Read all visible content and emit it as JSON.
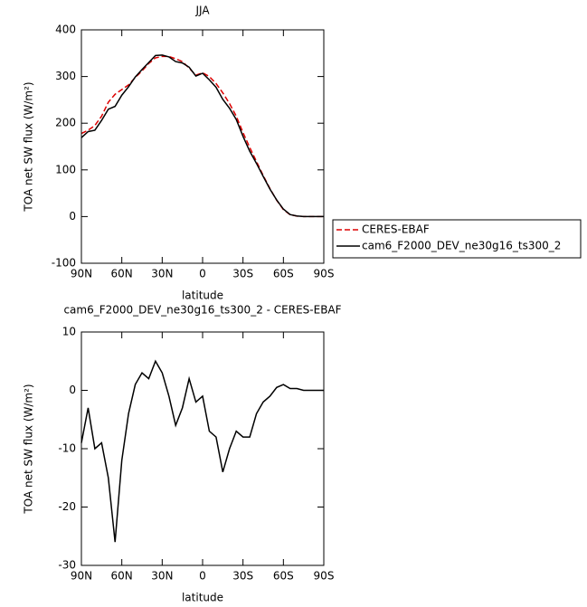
{
  "chart_data": [
    {
      "type": "line",
      "title": "JJA",
      "xlabel": "latitude",
      "ylabel": "TOA net SW flux (W/m²)",
      "x": [
        90,
        85,
        80,
        75,
        70,
        65,
        60,
        55,
        50,
        45,
        40,
        35,
        30,
        25,
        20,
        15,
        10,
        5,
        0,
        -5,
        -10,
        -15,
        -20,
        -25,
        -30,
        -35,
        -40,
        -45,
        -50,
        -55,
        -60,
        -65,
        -70,
        -75,
        -80,
        -85,
        -90
      ],
      "series": [
        {
          "name": "CERES-EBAF",
          "color": "#dd0000",
          "linestyle": "dashed",
          "values": [
            178,
            185,
            195,
            215,
            245,
            262,
            272,
            282,
            298,
            312,
            328,
            340,
            343,
            343,
            338,
            332,
            318,
            303,
            308,
            300,
            285,
            265,
            242,
            215,
            180,
            148,
            118,
            88,
            60,
            35,
            15,
            4,
            1,
            0,
            0,
            0,
            0
          ]
        },
        {
          "name": "cam6_F2000_DEV_ne30g16_ts300_2",
          "color": "#000000",
          "linestyle": "solid",
          "values": [
            169,
            182,
            185,
            206,
            230,
            236,
            260,
            278,
            299,
            315,
            330,
            345,
            346,
            342,
            332,
            329,
            320,
            301,
            307,
            293,
            277,
            251,
            232,
            208,
            172,
            140,
            114,
            86,
            59,
            35.5,
            16,
            4.3,
            1.3,
            0,
            0,
            0,
            0
          ]
        }
      ],
      "xlim": [
        90,
        -90
      ],
      "xticks": [
        {
          "value": 90,
          "label": "90N"
        },
        {
          "value": 60,
          "label": "60N"
        },
        {
          "value": 30,
          "label": "30N"
        },
        0,
        {
          "value": -30,
          "label": "30S"
        },
        {
          "value": -60,
          "label": "60S"
        },
        {
          "value": -90,
          "label": "90S"
        }
      ],
      "ylim": [
        -100,
        400
      ],
      "yticks": [
        -100,
        0,
        100,
        200,
        300,
        400
      ],
      "legend": "outside-right"
    },
    {
      "type": "line",
      "title": "cam6_F2000_DEV_ne30g16_ts300_2 - CERES-EBAF",
      "xlabel": "latitude",
      "ylabel": "TOA net SW flux (W/m²)",
      "x": [
        90,
        85,
        80,
        75,
        70,
        65,
        60,
        55,
        50,
        45,
        40,
        35,
        30,
        25,
        20,
        15,
        10,
        5,
        0,
        -5,
        -10,
        -15,
        -20,
        -25,
        -30,
        -35,
        -40,
        -45,
        -50,
        -55,
        -60,
        -65,
        -70,
        -75,
        -80,
        -85,
        -90
      ],
      "series": [
        {
          "color": "#000000",
          "linestyle": "solid",
          "values": [
            -9,
            -3,
            -10,
            -9,
            -15,
            -26,
            -12,
            -4,
            1,
            3,
            2,
            5,
            3,
            -1,
            -6,
            -3,
            2,
            -2,
            -1,
            -7,
            -8,
            -14,
            -10,
            -7,
            -8,
            -8,
            -4,
            -2,
            -1,
            0.5,
            1,
            0.3,
            0.3,
            0,
            0,
            0,
            0
          ]
        }
      ],
      "xlim": [
        90,
        -90
      ],
      "xticks": [
        {
          "value": 90,
          "label": "90N"
        },
        {
          "value": 60,
          "label": "60N"
        },
        {
          "value": 30,
          "label": "30N"
        },
        0,
        {
          "value": -30,
          "label": "30S"
        },
        {
          "value": -60,
          "label": "60S"
        },
        {
          "value": -90,
          "label": "90S"
        }
      ],
      "ylim": [
        -30,
        10
      ],
      "yticks": [
        -30,
        -20,
        -10,
        0,
        10
      ]
    }
  ]
}
